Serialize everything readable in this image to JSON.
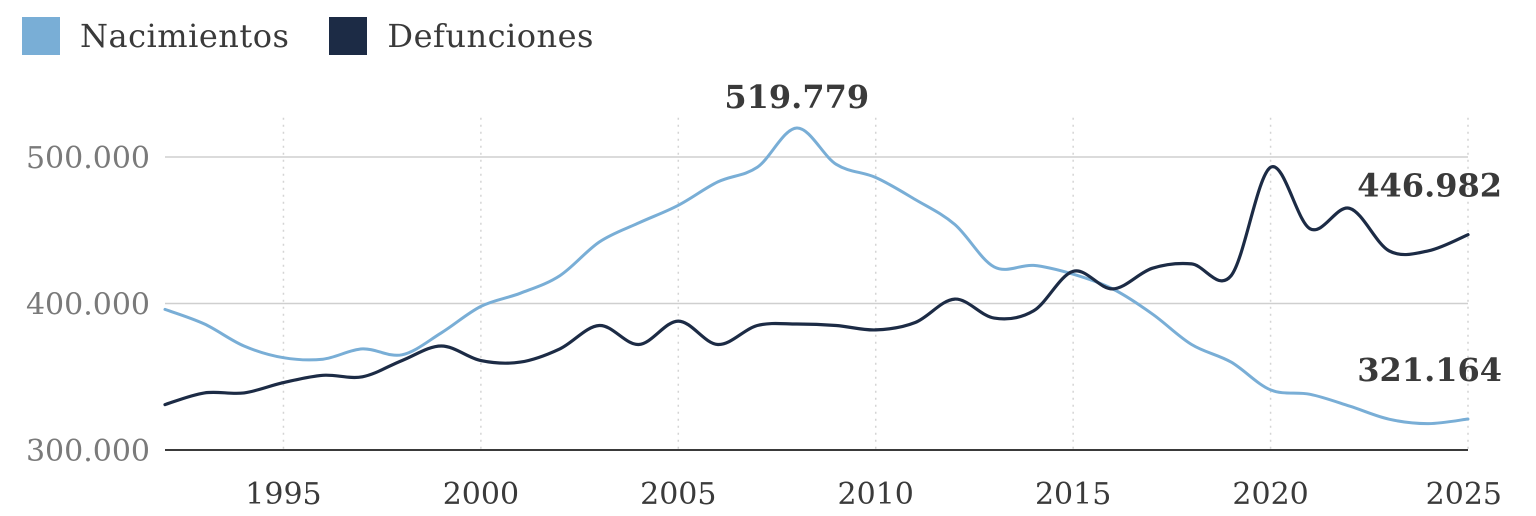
{
  "chart_data": {
    "type": "line",
    "title": "",
    "xlabel": "",
    "ylabel": "",
    "xlim": [
      1992,
      2025
    ],
    "ylim": [
      300000,
      520000
    ],
    "y_ticks": [
      {
        "value": 300000,
        "label": "300.000"
      },
      {
        "value": 400000,
        "label": "400.000"
      },
      {
        "value": 500000,
        "label": "500.000"
      }
    ],
    "x_ticks": [
      {
        "value": 1995,
        "label": "1995"
      },
      {
        "value": 2000,
        "label": "2000"
      },
      {
        "value": 2005,
        "label": "2005"
      },
      {
        "value": 2010,
        "label": "2010"
      },
      {
        "value": 2015,
        "label": "2015"
      },
      {
        "value": 2020,
        "label": "2020"
      },
      {
        "value": 2025,
        "label": "2025"
      }
    ],
    "grid": "horizontal solid at labelled y ticks, vertical dotted at x ticks",
    "legend": "top-left",
    "series": [
      {
        "name": "Nacimientos",
        "color": "#79aed6",
        "points": [
          [
            1992,
            396000
          ],
          [
            1993,
            386000
          ],
          [
            1994,
            371000
          ],
          [
            1995,
            363000
          ],
          [
            1996,
            362000
          ],
          [
            1997,
            369000
          ],
          [
            1998,
            365000
          ],
          [
            1999,
            380000
          ],
          [
            2000,
            398000
          ],
          [
            2001,
            407000
          ],
          [
            2002,
            419000
          ],
          [
            2003,
            442000
          ],
          [
            2004,
            455000
          ],
          [
            2005,
            467000
          ],
          [
            2006,
            483000
          ],
          [
            2007,
            493000
          ],
          [
            2008,
            519779
          ],
          [
            2009,
            495000
          ],
          [
            2010,
            486000
          ],
          [
            2011,
            471000
          ],
          [
            2012,
            454000
          ],
          [
            2013,
            425000
          ],
          [
            2014,
            426000
          ],
          [
            2015,
            420000
          ],
          [
            2016,
            410000
          ],
          [
            2017,
            393000
          ],
          [
            2018,
            372000
          ],
          [
            2019,
            360000
          ],
          [
            2020,
            341000
          ],
          [
            2021,
            338000
          ],
          [
            2022,
            330000
          ],
          [
            2023,
            321000
          ],
          [
            2024,
            318000
          ],
          [
            2025,
            321164
          ]
        ]
      },
      {
        "name": "Defunciones",
        "color": "#1c2b45",
        "points": [
          [
            1992,
            331000
          ],
          [
            1993,
            339000
          ],
          [
            1994,
            339000
          ],
          [
            1995,
            346000
          ],
          [
            1996,
            351000
          ],
          [
            1997,
            350000
          ],
          [
            1998,
            361000
          ],
          [
            1999,
            371000
          ],
          [
            2000,
            361000
          ],
          [
            2001,
            360000
          ],
          [
            2002,
            369000
          ],
          [
            2003,
            385000
          ],
          [
            2004,
            372000
          ],
          [
            2005,
            388000
          ],
          [
            2006,
            372000
          ],
          [
            2007,
            385000
          ],
          [
            2008,
            386000
          ],
          [
            2009,
            385000
          ],
          [
            2010,
            382000
          ],
          [
            2011,
            387000
          ],
          [
            2012,
            403000
          ],
          [
            2013,
            390000
          ],
          [
            2014,
            395000
          ],
          [
            2015,
            422000
          ],
          [
            2016,
            410000
          ],
          [
            2017,
            424000
          ],
          [
            2018,
            427000
          ],
          [
            2019,
            419000
          ],
          [
            2020,
            493000
          ],
          [
            2021,
            451000
          ],
          [
            2022,
            465000
          ],
          [
            2023,
            436000
          ],
          [
            2024,
            436000
          ],
          [
            2025,
            446982
          ]
        ]
      }
    ],
    "annotations": [
      {
        "text": "519.779",
        "x": 2008,
        "y": 519779,
        "position": "above"
      },
      {
        "text": "446.982",
        "x": 2025,
        "y": 446982,
        "position": "above-left"
      },
      {
        "text": "321.164",
        "x": 2025,
        "y": 321164,
        "position": "above-left"
      }
    ]
  }
}
